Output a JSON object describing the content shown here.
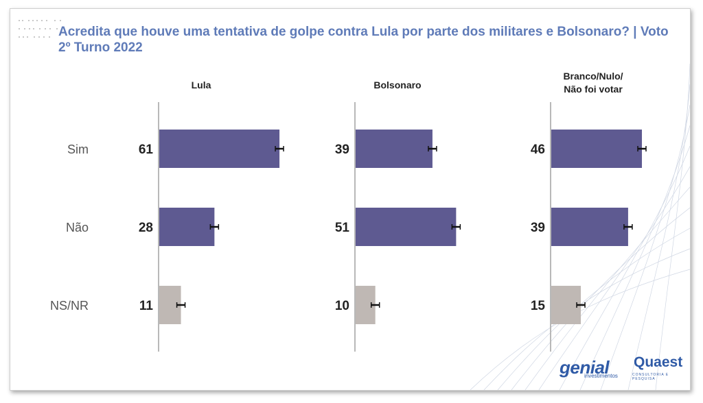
{
  "title": "Acredita que houve uma tentativa de golpe contra Lula por parte dos militares e Bolsonaro? | Voto 2º Turno 2022",
  "brands": {
    "genial": "genial",
    "genial_sub": "investimentos",
    "quaest": "Quaest",
    "quaest_sub": "CONSULTORIA E PESQUISA"
  },
  "colors": {
    "main_bar": "#5e5a91",
    "ns_bar": "#bfb8b4",
    "title": "#5f7bb8",
    "axis": "#b8b8b8"
  },
  "chart_data": {
    "type": "bar",
    "orientation": "horizontal",
    "title": "Acredita que houve uma tentativa de golpe contra Lula por parte dos militares e Bolsonaro? | Voto 2º Turno 2022",
    "categories": [
      "Sim",
      "Não",
      "NS/NR"
    ],
    "panels": [
      {
        "name": "Lula",
        "values": [
          61,
          28,
          11
        ]
      },
      {
        "name": "Bolsonaro",
        "values": [
          39,
          51,
          10
        ]
      },
      {
        "name": "Branco/Nulo/ Não foi votar",
        "values": [
          46,
          39,
          15
        ]
      }
    ],
    "error_bars": true,
    "xlim": [
      0,
      100
    ],
    "grid": false,
    "legend": "none"
  }
}
